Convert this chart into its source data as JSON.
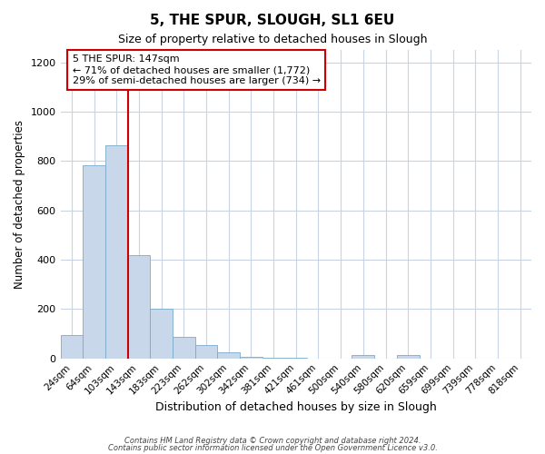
{
  "title": "5, THE SPUR, SLOUGH, SL1 6EU",
  "subtitle": "Size of property relative to detached houses in Slough",
  "xlabel": "Distribution of detached houses by size in Slough",
  "ylabel": "Number of detached properties",
  "bar_labels": [
    "24sqm",
    "64sqm",
    "103sqm",
    "143sqm",
    "183sqm",
    "223sqm",
    "262sqm",
    "302sqm",
    "342sqm",
    "381sqm",
    "421sqm",
    "461sqm",
    "500sqm",
    "540sqm",
    "580sqm",
    "620sqm",
    "659sqm",
    "699sqm",
    "739sqm",
    "778sqm",
    "818sqm"
  ],
  "bar_values": [
    93,
    783,
    863,
    420,
    203,
    88,
    55,
    23,
    8,
    3,
    1,
    0,
    0,
    12,
    0,
    12,
    0,
    0,
    0,
    0,
    0
  ],
  "bar_color": "#c8d8ea",
  "bar_edge_color": "#7aaac8",
  "property_line_color": "#cc0000",
  "annotation_line1": "5 THE SPUR: 147sqm",
  "annotation_line2": "← 71% of detached houses are smaller (1,772)",
  "annotation_line3": "29% of semi-detached houses are larger (734) →",
  "annotation_box_color": "#ffffff",
  "annotation_box_edge_color": "#cc0000",
  "ylim": [
    0,
    1250
  ],
  "yticks": [
    0,
    200,
    400,
    600,
    800,
    1000,
    1200
  ],
  "footer_line1": "Contains HM Land Registry data © Crown copyright and database right 2024.",
  "footer_line2": "Contains public sector information licensed under the Open Government Licence v3.0.",
  "bg_color": "#ffffff",
  "grid_color": "#c8d4e4",
  "property_bin_index": 2,
  "title_fontsize": 11,
  "subtitle_fontsize": 9
}
